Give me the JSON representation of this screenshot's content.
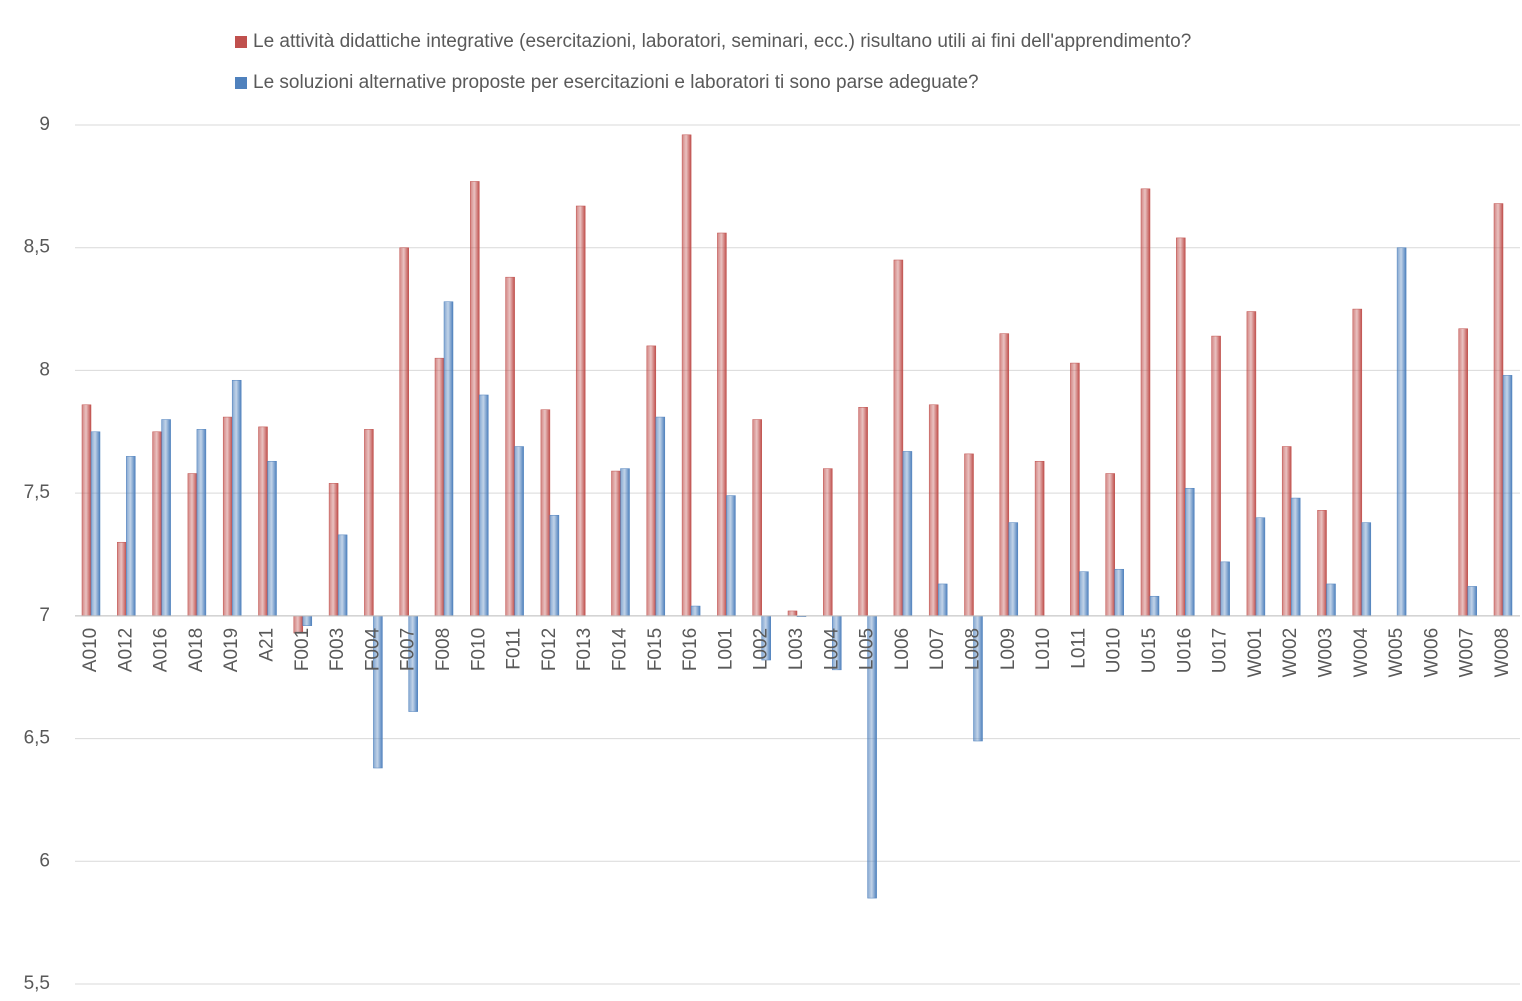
{
  "chart_data": {
    "type": "bar",
    "categories": [
      "A010",
      "A012",
      "A016",
      "A018",
      "A019",
      "A21",
      "F001",
      "F003",
      "F004",
      "F007",
      "F008",
      "F010",
      "F011",
      "F012",
      "F013",
      "F014",
      "F015",
      "F016",
      "L001",
      "L002",
      "L003",
      "L004",
      "L005",
      "L006",
      "L007",
      "L008",
      "L009",
      "L010",
      "L011",
      "U010",
      "U015",
      "U016",
      "U017",
      "W001",
      "W002",
      "W003",
      "W004",
      "W005",
      "W006",
      "W007",
      "W008"
    ],
    "series": [
      {
        "name": "Le attività  didattiche integrative (esercitazioni, laboratori, seminari, ecc.) risultano utili ai fini dell'apprendimento?",
        "color": "#c0504d",
        "values": [
          7.86,
          7.3,
          7.75,
          7.58,
          7.81,
          7.77,
          6.93,
          7.54,
          7.76,
          8.5,
          8.05,
          8.77,
          8.38,
          7.84,
          8.67,
          7.59,
          8.1,
          8.96,
          8.56,
          7.8,
          7.02,
          7.6,
          7.85,
          8.45,
          7.86,
          7.66,
          8.15,
          7.63,
          8.03,
          7.58,
          8.74,
          8.54,
          8.14,
          8.24,
          7.69,
          7.43,
          8.25,
          null,
          null,
          8.17,
          8.68
        ]
      },
      {
        "name": "Le soluzioni alternative proposte per esercitazioni e laboratori ti sono  parse adeguate?",
        "color": "#4f81bd",
        "values": [
          7.75,
          7.65,
          7.8,
          7.76,
          7.96,
          7.63,
          6.96,
          7.33,
          6.38,
          6.61,
          8.28,
          7.9,
          7.69,
          7.41,
          null,
          7.6,
          7.81,
          7.04,
          7.49,
          6.82,
          7.0,
          6.78,
          5.85,
          7.67,
          7.13,
          6.49,
          7.38,
          null,
          7.18,
          7.19,
          7.08,
          7.52,
          7.22,
          7.4,
          7.48,
          7.13,
          7.38,
          8.5,
          null,
          7.12,
          7.98
        ]
      }
    ],
    "ylim": [
      5.5,
      9
    ],
    "yticks": [
      {
        "value": 5.5,
        "label": "5,5"
      },
      6,
      {
        "value": 6.5,
        "label": "6,5"
      },
      7,
      {
        "value": 7.5,
        "label": "7,5"
      },
      8,
      {
        "value": 8.5,
        "label": "8,5"
      },
      9
    ],
    "baseline": 7,
    "grid": true,
    "legend": "top"
  }
}
